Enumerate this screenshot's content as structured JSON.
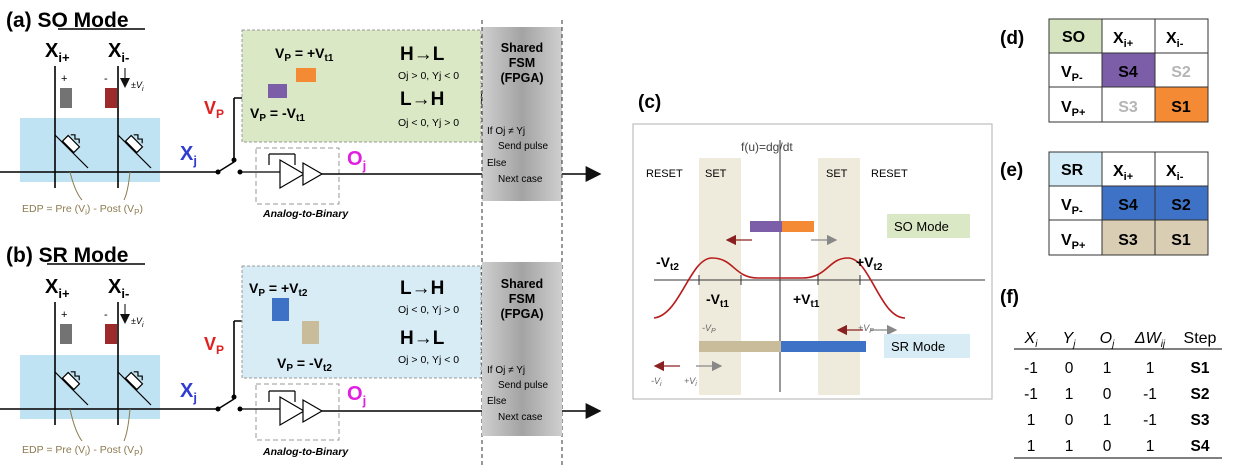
{
  "panel_a": {
    "title": "(a) SO Mode",
    "x_plus": "X",
    "x_plus_sub": "i+",
    "x_minus": "X",
    "x_minus_sub": "i-",
    "plus_sign": "+",
    "minus_sign": "-",
    "pm_v": "±V",
    "pm_v_sub": "i",
    "vp_label": "V",
    "vp_sub": "P",
    "xj_label": "X",
    "xj_sub": "j",
    "oj_label": "O",
    "oj_sub": "j",
    "vp_pos": "V",
    "vp_pos_sub": "P",
    "vp_pos_val": " = +V",
    "vp_pos_val_sub": "t1",
    "vp_neg": "V",
    "vp_neg_sub": "P",
    "vp_neg_val": " = -V",
    "vp_neg_val_sub": "t1",
    "trans1": "H→L",
    "trans1_cond": "Oj > 0, Yj < 0",
    "trans2": "L→H",
    "trans2_cond": "Oj < 0, Yj > 0",
    "fsm_line1": "Shared",
    "fsm_line2": "FSM",
    "fsm_line3": "(FPGA)",
    "fsm_if": "If Oj ≠ Yj",
    "fsm_send": "Send pulse",
    "fsm_else": "Else",
    "fsm_next": "Next case",
    "edp": "EDP = Pre (V",
    "edp_sub1": "i",
    "edp_mid": ") - Post (V",
    "edp_sub2": "P",
    "edp_end": ")",
    "a2b": "Analog-to-Binary"
  },
  "panel_b": {
    "title": "(b) SR Mode",
    "vp_pos": "V",
    "vp_pos_sub": "P",
    "vp_pos_val": " = +V",
    "vp_pos_val_sub": "t2",
    "vp_neg": "V",
    "vp_neg_sub": "P",
    "vp_neg_val": " = -V",
    "vp_neg_val_sub": "t2",
    "trans1": "L→H",
    "trans1_cond": "Oj < 0, Yj > 0",
    "trans2": "H→L",
    "trans2_cond": "Oj > 0, Yj < 0"
  },
  "panel_c": {
    "label": "(c)",
    "y_axis": "f(u)=dg/dt",
    "reset_left": "RESET",
    "set_left": "SET",
    "set_right": "SET",
    "reset_right": "RESET",
    "so_mode": "SO Mode",
    "sr_mode": "SR Mode",
    "neg_vt2": "-V",
    "neg_vt2_sub": "t2",
    "pos_vt2": "+V",
    "pos_vt2_sub": "t2",
    "neg_vt1": "-V",
    "neg_vt1_sub": "t1",
    "pos_vt1": "+V",
    "pos_vt1_sub": "t1",
    "neg_vp": "-V",
    "neg_vp_sub": "P",
    "pos_vp": "+V",
    "pos_vp_sub": "P",
    "neg_vi": "-V",
    "neg_vi_sub": "i",
    "pos_vi": "+V",
    "pos_vi_sub": "i"
  },
  "panel_d": {
    "label": "(d)",
    "corner": "SO",
    "col1": "X",
    "col1_sub": "i+",
    "col2": "X",
    "col2_sub": "i-",
    "row1": "V",
    "row1_sub": "P-",
    "row2": "V",
    "row2_sub": "P+",
    "cells": [
      "S4",
      "S2",
      "S3",
      "S1"
    ]
  },
  "panel_e": {
    "label": "(e)",
    "corner": "SR",
    "col1": "X",
    "col1_sub": "i+",
    "col2": "X",
    "col2_sub": "i-",
    "row1": "V",
    "row1_sub": "P-",
    "row2": "V",
    "row2_sub": "P+",
    "cells": [
      "S4",
      "S2",
      "S3",
      "S1"
    ]
  },
  "panel_f": {
    "label": "(f)",
    "headers": [
      "X",
      "Y",
      "O",
      "ΔW",
      "Step"
    ],
    "header_subs": [
      "i",
      "j",
      "j",
      "ij",
      ""
    ],
    "rows": [
      [
        "-1",
        "0",
        "1",
        "1",
        "S1"
      ],
      [
        "-1",
        "1",
        "0",
        "-1",
        "S2"
      ],
      [
        "1",
        "0",
        "1",
        "-1",
        "S3"
      ],
      [
        "1",
        "1",
        "0",
        "1",
        "S4"
      ]
    ]
  },
  "colors": {
    "purple": "#7b5ea7",
    "orange": "#f58a34",
    "blue": "#3e72c6",
    "tan": "#c9bc9a",
    "dark_red": "#9c2a2a",
    "green_box": "#dbe8c5",
    "blue_box": "#d8ecf6",
    "light_blue_region": "#bfe3f3",
    "set_band": "#efebdc",
    "fsm_gray": "#a9a9a9"
  }
}
